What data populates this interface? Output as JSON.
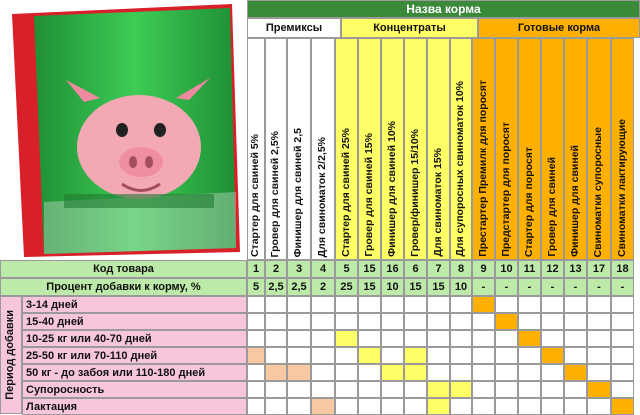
{
  "table_title": "Назва корма",
  "groups": [
    {
      "label": "Премиксы",
      "color": "#ffffff"
    },
    {
      "label": "Концентраты",
      "color": "#ffff66"
    },
    {
      "label": "Готовые корма",
      "color": "#ffb000"
    }
  ],
  "products": [
    {
      "name": "Стартер для свиней 5%",
      "code": "1",
      "percent": "5",
      "group": 0
    },
    {
      "name": "Гровер для свиней 2,5%",
      "code": "2",
      "percent": "2,5",
      "group": 0
    },
    {
      "name": "Финишер для свиней 2,5",
      "code": "3",
      "percent": "2,5",
      "group": 0
    },
    {
      "name": "Для свиноматок 2/2,5%",
      "code": "4",
      "percent": "2",
      "group": 0
    },
    {
      "name": "Стартер для свиней 25%",
      "code": "5",
      "percent": "25",
      "group": 1
    },
    {
      "name": "Гровер для свиней 15%",
      "code": "15",
      "percent": "15",
      "group": 1
    },
    {
      "name": "Финишер для свиней 10%",
      "code": "16",
      "percent": "10",
      "group": 1
    },
    {
      "name": "Гровер/финишер 15/10%",
      "code": "6",
      "percent": "15",
      "group": 1
    },
    {
      "name": "Для свиноматок 15%",
      "code": "7",
      "percent": "15",
      "group": 1
    },
    {
      "name": "Для супоросных свиноматок 10%",
      "code": "8",
      "percent": "10",
      "group": 1
    },
    {
      "name": "Престартер Премилк для поросят",
      "code": "9",
      "percent": "-",
      "group": 2
    },
    {
      "name": "Предстартер для поросят",
      "code": "10",
      "percent": "-",
      "group": 2
    },
    {
      "name": "Стартер для поросят",
      "code": "11",
      "percent": "-",
      "group": 2
    },
    {
      "name": "Гровер для свиней",
      "code": "12",
      "percent": "-",
      "group": 2
    },
    {
      "name": "Финишер для свиней",
      "code": "13",
      "percent": "-",
      "group": 2
    },
    {
      "name": "Свиноматки супоросные",
      "code": "17",
      "percent": "-",
      "group": 2
    },
    {
      "name": "Свиноматки лактирующие",
      "code": "18",
      "percent": "-",
      "group": 2
    }
  ],
  "code_row_label": "Код товара",
  "percent_row_label": "Процент добавки к корму, %",
  "period_label": "Период добавки",
  "periods": [
    {
      "label": "3-14 дней",
      "marks": [
        10
      ]
    },
    {
      "label": "15-40 дней",
      "marks": [
        11
      ]
    },
    {
      "label": "10-25 кг или 40-70 дней",
      "marks": [
        4,
        12
      ]
    },
    {
      "label": "25-50 кг или 70-110 дней",
      "marks": [
        0,
        5,
        7,
        13
      ]
    },
    {
      "label": "50 кг - до забоя или 110-180 дней",
      "marks": [
        1,
        2,
        6,
        7,
        14
      ]
    },
    {
      "label": "Супоросность",
      "marks": [
        8,
        9,
        15
      ]
    },
    {
      "label": "Лактация",
      "marks": [
        3,
        8,
        16
      ]
    }
  ],
  "colors": {
    "title": "#3a8a3a",
    "label_bg": "#bdeaa8",
    "period_bg": "#f7c6dc",
    "premix_mark": "#f8c8a0"
  },
  "bag": {
    "brand_bar": "#e3262e",
    "body": "#2fb34a"
  }
}
